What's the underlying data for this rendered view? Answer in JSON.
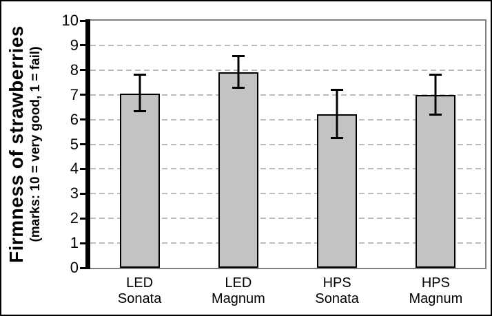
{
  "figure": {
    "background": "#ffffff",
    "outer_border_color": "#000000"
  },
  "chart_data": {
    "type": "bar",
    "title": "",
    "xlabel": "",
    "ylabel": "Firmness of strawberries",
    "ylabel_sub": "(marks: 10 = very good, 1 = fail)",
    "categories": [
      "LED Sonata",
      "LED Magnum",
      "HPS Sonata",
      "HPS Magnum"
    ],
    "category_lines": [
      [
        "LED",
        "Sonata"
      ],
      [
        "LED",
        "Magnum"
      ],
      [
        "HPS",
        "Sonata"
      ],
      [
        "HPS",
        "Magnum"
      ]
    ],
    "values": [
      7.05,
      7.9,
      6.2,
      7.0
    ],
    "error_bars": {
      "low": [
        6.3,
        7.25,
        5.2,
        6.15
      ],
      "high": [
        7.85,
        8.6,
        7.25,
        7.85
      ]
    },
    "ylim": [
      0,
      10
    ],
    "ytick_step": 1,
    "yticks": [
      "0",
      "1",
      "2",
      "3",
      "4",
      "5",
      "6",
      "7",
      "8",
      "9",
      "10"
    ],
    "grid": "horizontal-dashed",
    "legend_position": "none",
    "colors": {
      "bar_fill": "#c3c3c3",
      "bar_border": "#000000",
      "error_bar": "#000000",
      "gridline": "#bdbdbd",
      "plot_border": "#7f7f7f",
      "axis_line": "#000000",
      "text": "#000000"
    }
  }
}
